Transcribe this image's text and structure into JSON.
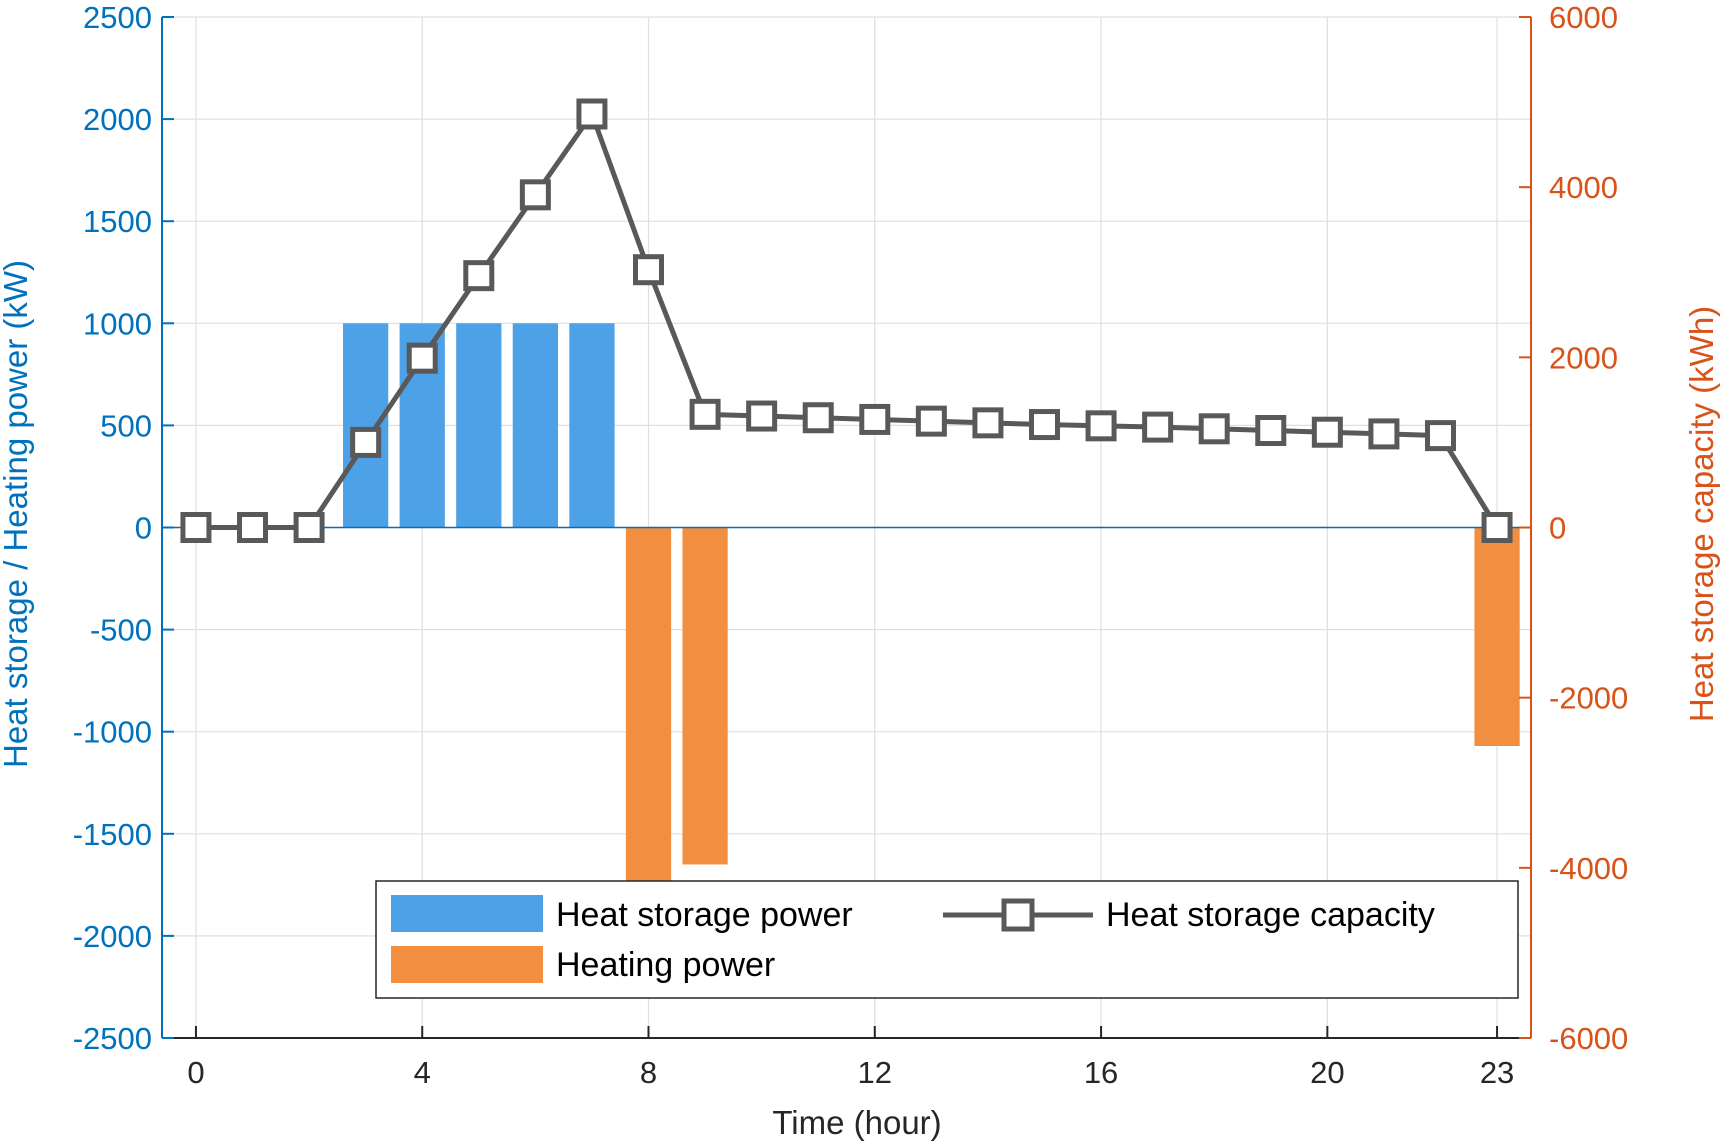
{
  "chart_data": {
    "type": "bar",
    "title": "",
    "xlabel": "Time (hour)",
    "ylabel_left": "Heat storage / Heating power (kW)",
    "ylabel_right": "Heat storage capacity (kWh)",
    "xlim": [
      -0.6,
      23.6
    ],
    "ylim_left": [
      -2500,
      2500
    ],
    "ylim_right": [
      -6000,
      6000
    ],
    "x_ticks": [
      0,
      4,
      8,
      12,
      16,
      20,
      23
    ],
    "y_ticks_left": [
      2500,
      2000,
      1500,
      1000,
      500,
      0,
      -500,
      -1000,
      -1500,
      -2000,
      -2500
    ],
    "y_ticks_right": [
      6000,
      4000,
      2000,
      0,
      -2000,
      -4000,
      -6000
    ],
    "grid": true,
    "legend_position": "bottom-center",
    "colors": {
      "heat_storage_power": "#4DA1E6",
      "heating_power": "#F28E3F",
      "heat_storage_capacity": "#595959",
      "left_axis": "#0072BD",
      "right_axis": "#D95319"
    },
    "series": [
      {
        "name": "Heat storage power",
        "type": "bar",
        "axis": "left",
        "x": [
          3,
          4,
          5,
          6,
          7
        ],
        "values": [
          1000,
          1000,
          1000,
          1000,
          1000
        ]
      },
      {
        "name": "Heating power",
        "type": "bar",
        "axis": "left",
        "x": [
          8,
          9,
          23
        ],
        "values": [
          -1730,
          -1650,
          -1070
        ]
      },
      {
        "name": "Heat storage capacity",
        "type": "line",
        "marker": "square",
        "axis": "right",
        "x": [
          0,
          1,
          2,
          3,
          4,
          5,
          6,
          7,
          8,
          9,
          10,
          11,
          12,
          13,
          14,
          15,
          16,
          17,
          18,
          19,
          20,
          21,
          22,
          23
        ],
        "values": [
          0,
          0,
          0,
          1000,
          1990,
          2960,
          3910,
          4860,
          3030,
          1330,
          1310,
          1290,
          1270,
          1250,
          1230,
          1210,
          1195,
          1180,
          1160,
          1140,
          1120,
          1100,
          1080,
          0
        ]
      }
    ]
  }
}
